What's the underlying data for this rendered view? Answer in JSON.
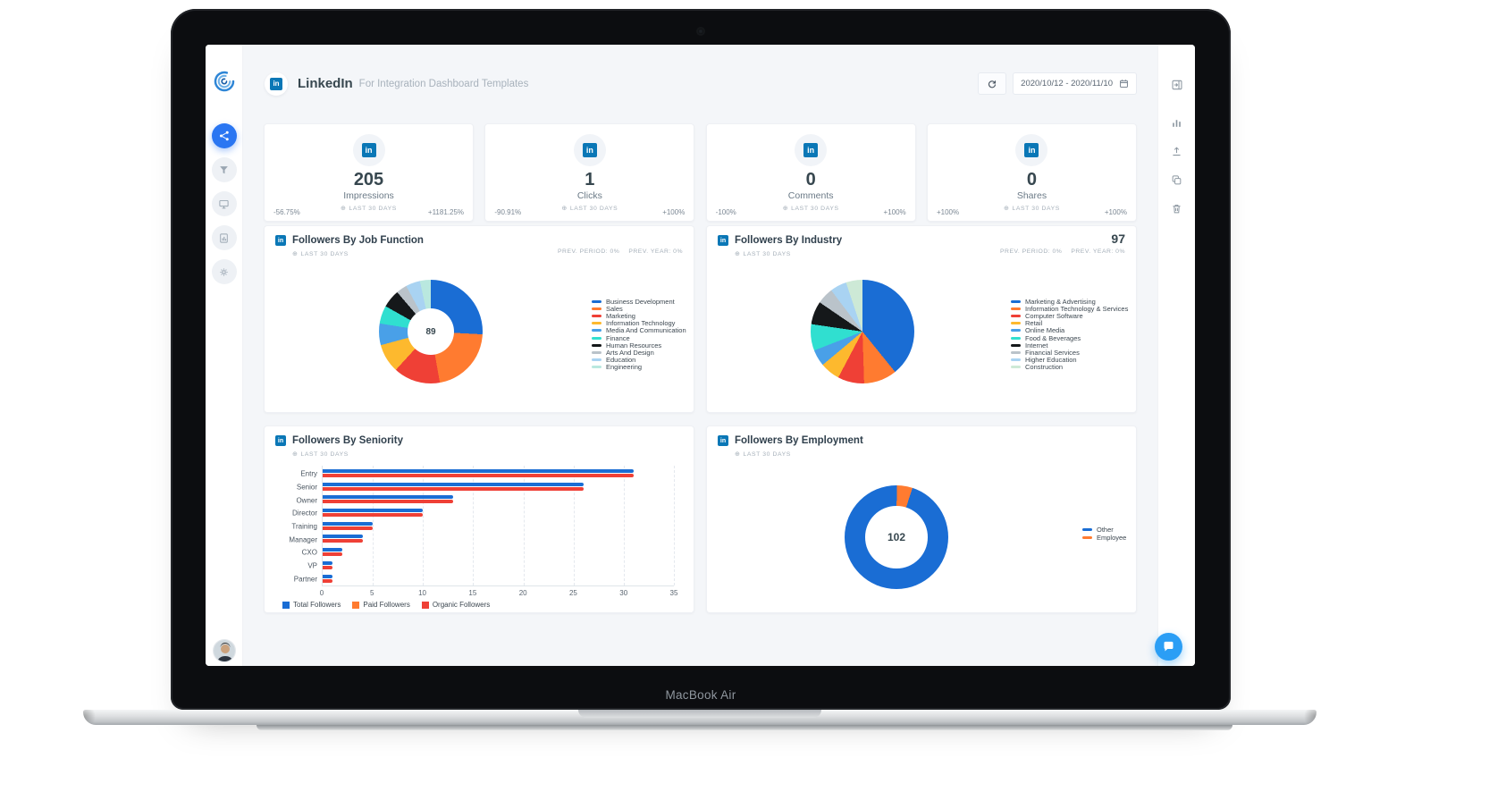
{
  "device": {
    "label": "MacBook Air"
  },
  "brand": {
    "linkedin_color": "#0a77b6",
    "accent_color": "#2a76f2"
  },
  "sidebar": {
    "items": [
      {
        "icon": "share-nodes-icon",
        "active": true
      },
      {
        "icon": "funnel-icon",
        "active": false
      },
      {
        "icon": "monitor-icon",
        "active": false
      },
      {
        "icon": "report-icon",
        "active": false
      },
      {
        "icon": "gear-icon",
        "active": false
      }
    ]
  },
  "header": {
    "title": "LinkedIn",
    "subtitle": "For Integration Dashboard Templates",
    "date_range": "2020/10/12 - 2020/11/10"
  },
  "kpis": [
    {
      "value": "205",
      "label": "Impressions",
      "period": "LAST 30 DAYS",
      "delta_left": "-56.75%",
      "delta_right": "+1181.25%"
    },
    {
      "value": "1",
      "label": "Clicks",
      "period": "LAST 30 DAYS",
      "delta_left": "-90.91%",
      "delta_right": "+100%"
    },
    {
      "value": "0",
      "label": "Comments",
      "period": "LAST 30 DAYS",
      "delta_left": "-100%",
      "delta_right": "+100%"
    },
    {
      "value": "0",
      "label": "Shares",
      "period": "LAST 30 DAYS",
      "delta_left": "+100%",
      "delta_right": "+100%"
    }
  ],
  "chart_data": [
    {
      "id": "job_function",
      "type": "pie",
      "donut": true,
      "title": "Followers By Job Function",
      "period": "LAST 30 DAYS",
      "prev_period": "PREV. PERIOD: 0%",
      "prev_year": "PREV. YEAR: 0%",
      "center_value": "89",
      "legend_position": "right",
      "slices": [
        {
          "label": "Business Development",
          "value": 23,
          "color": "#1a6dd4"
        },
        {
          "label": "Sales",
          "value": 19,
          "color": "#ff7b30"
        },
        {
          "label": "Marketing",
          "value": 13,
          "color": "#ef4036"
        },
        {
          "label": "Information Technology",
          "value": 8,
          "color": "#fdb92e"
        },
        {
          "label": "Media And Communication",
          "value": 6,
          "color": "#49a0e8"
        },
        {
          "label": "Finance",
          "value": 5,
          "color": "#30dfd0"
        },
        {
          "label": "Human Resources",
          "value": 5,
          "color": "#15181a"
        },
        {
          "label": "Arts And Design",
          "value": 3,
          "color": "#bac3ca"
        },
        {
          "label": "Education",
          "value": 4,
          "color": "#a9d3f2"
        },
        {
          "label": "Engineering",
          "value": 3,
          "color": "#b9e8df"
        }
      ]
    },
    {
      "id": "industry",
      "type": "pie",
      "donut": false,
      "title": "Followers By Industry",
      "period": "LAST 30 DAYS",
      "prev_period": "PREV. PERIOD: 0%",
      "prev_year": "PREV. YEAR: 0%",
      "total_value": "97",
      "legend_position": "right",
      "slices": [
        {
          "label": "Marketing & Advertising",
          "value": 38,
          "color": "#1a6dd4"
        },
        {
          "label": "Information Technology & Services",
          "value": 10,
          "color": "#ff7b30"
        },
        {
          "label": "Computer Software",
          "value": 8,
          "color": "#ef4036"
        },
        {
          "label": "Retail",
          "value": 6,
          "color": "#fdb92e"
        },
        {
          "label": "Online Media",
          "value": 5,
          "color": "#49a0e8"
        },
        {
          "label": "Food & Beverages",
          "value": 8,
          "color": "#30dfd0"
        },
        {
          "label": "Internet",
          "value": 7,
          "color": "#15181a"
        },
        {
          "label": "Financial Services",
          "value": 5,
          "color": "#bac3ca"
        },
        {
          "label": "Higher Education",
          "value": 5,
          "color": "#a9d3f2"
        },
        {
          "label": "Construction",
          "value": 5,
          "color": "#cde9d6"
        }
      ]
    },
    {
      "id": "seniority",
      "type": "bar",
      "title": "Followers By Seniority",
      "period": "LAST 30 DAYS",
      "categories": [
        "Entry",
        "Senior",
        "Owner",
        "Director",
        "Training",
        "Manager",
        "CXO",
        "VP",
        "Partner"
      ],
      "series": [
        {
          "name": "Total Followers",
          "color": "#1a6dd4",
          "values": [
            31,
            26,
            13,
            10,
            5,
            4,
            2,
            1,
            1
          ]
        },
        {
          "name": "Paid Followers",
          "color": "#ff7b30",
          "values": [
            0,
            0,
            0,
            0,
            0,
            0,
            0,
            0,
            0
          ]
        },
        {
          "name": "Organic Followers",
          "color": "#ef4036",
          "values": [
            31,
            26,
            13,
            10,
            5,
            4,
            2,
            1,
            1
          ]
        }
      ],
      "xticks": [
        0,
        5,
        10,
        15,
        20,
        25,
        30,
        35
      ],
      "xmax": 35,
      "grid": true,
      "legend_position": "bottom"
    },
    {
      "id": "employment",
      "type": "pie",
      "donut": true,
      "rotate": 18,
      "title": "Followers By Employment",
      "period": "LAST 30 DAYS",
      "center_value": "102",
      "legend_position": "right",
      "slices": [
        {
          "label": "Other",
          "value": 97,
          "color": "#1a6dd4"
        },
        {
          "label": "Employee",
          "value": 5,
          "color": "#ff7b30"
        }
      ]
    }
  ]
}
